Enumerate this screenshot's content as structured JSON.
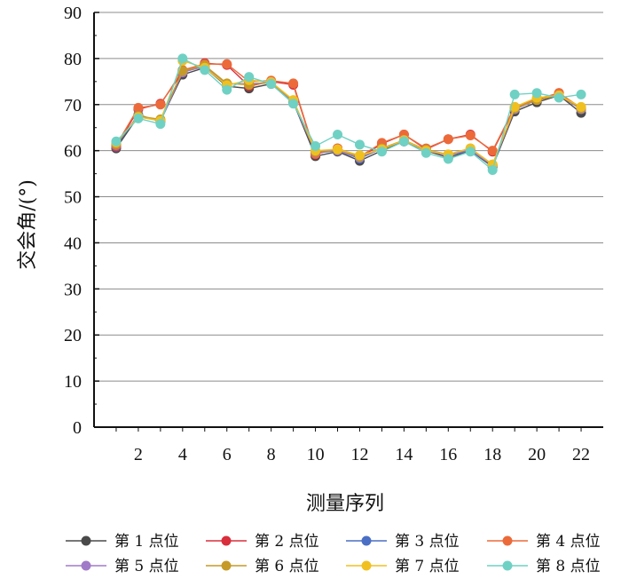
{
  "chart_data": {
    "type": "line",
    "xlabel": "测量序列",
    "ylabel": "交会角/(°)",
    "x": [
      1,
      2,
      3,
      4,
      5,
      6,
      7,
      8,
      9,
      10,
      11,
      12,
      13,
      14,
      15,
      16,
      17,
      18,
      19,
      20,
      21,
      22
    ],
    "xticks": [
      2,
      4,
      6,
      8,
      10,
      12,
      14,
      16,
      18,
      20,
      22
    ],
    "ylim": [
      0,
      90
    ],
    "yticks": [
      0,
      10,
      20,
      30,
      40,
      50,
      60,
      70,
      80,
      90
    ],
    "grid": "horizontal",
    "legend_position": "bottom",
    "series": [
      {
        "name": "第 1 点位",
        "color": "#4a4a4a",
        "values": [
          60.5,
          67.5,
          66.5,
          76.5,
          78,
          74,
          73.5,
          74.5,
          70.5,
          58.8,
          59.8,
          57.8,
          60,
          62,
          60,
          58.5,
          60,
          56.5,
          68.5,
          70.5,
          72,
          68.2
        ]
      },
      {
        "name": "第 2 点位",
        "color": "#d92e3c",
        "values": [
          60.8,
          69,
          70.2,
          77,
          79,
          78.6,
          74,
          75,
          74.3,
          59.2,
          60.5,
          58.5,
          61.5,
          63.5,
          60.3,
          62.5,
          63.5,
          59.8,
          69.2,
          71,
          72.5,
          69.2
        ]
      },
      {
        "name": "第 3 点位",
        "color": "#4a6fc4",
        "values": [
          61,
          67.8,
          66.3,
          77.2,
          78.2,
          74.5,
          74.5,
          74.8,
          70.5,
          59.5,
          60,
          58.3,
          60.5,
          62,
          60.2,
          59,
          60,
          56.8,
          69,
          71,
          72,
          69
        ]
      },
      {
        "name": "第 4 点位",
        "color": "#ec6a3a",
        "values": [
          61.2,
          69.3,
          70,
          77.5,
          78.8,
          78.8,
          75,
          75.2,
          74.6,
          59.3,
          60.5,
          58.7,
          61.7,
          63.5,
          60.5,
          62.5,
          63.3,
          60,
          69.5,
          71.2,
          72.5,
          69.3
        ]
      },
      {
        "name": "第 5 点位",
        "color": "#a07ac8",
        "values": [
          61.5,
          67.5,
          66.5,
          77,
          78.3,
          74.5,
          74.5,
          74.8,
          70.6,
          59.7,
          60,
          58.5,
          60.5,
          62.2,
          60,
          59,
          60.2,
          56.8,
          69,
          71,
          72,
          69
        ]
      },
      {
        "name": "第 6 点位",
        "color": "#c59a28",
        "values": [
          61.5,
          67.5,
          66.8,
          77.3,
          78.5,
          74.6,
          74.3,
          74.8,
          70.8,
          59.8,
          60.2,
          58.7,
          60.5,
          62.3,
          60.2,
          59.2,
          60.5,
          57,
          69.2,
          71,
          72,
          69.2
        ]
      },
      {
        "name": "第 7 点位",
        "color": "#f0c020",
        "values": [
          61.8,
          67.3,
          66.5,
          79.5,
          78,
          74.2,
          75.3,
          74.9,
          71,
          60,
          60.3,
          59,
          60.3,
          62.3,
          60,
          59.2,
          60.5,
          57,
          69.5,
          71.5,
          72,
          69.5
        ]
      },
      {
        "name": "第 8 点位",
        "color": "#6fd1c4",
        "values": [
          62,
          67,
          65.8,
          80,
          77.5,
          73.2,
          76,
          74.5,
          70.2,
          61,
          63.5,
          61.3,
          59.8,
          62,
          59.5,
          58.2,
          59.8,
          55.8,
          72.2,
          72.5,
          71.5,
          72.2
        ]
      }
    ]
  }
}
